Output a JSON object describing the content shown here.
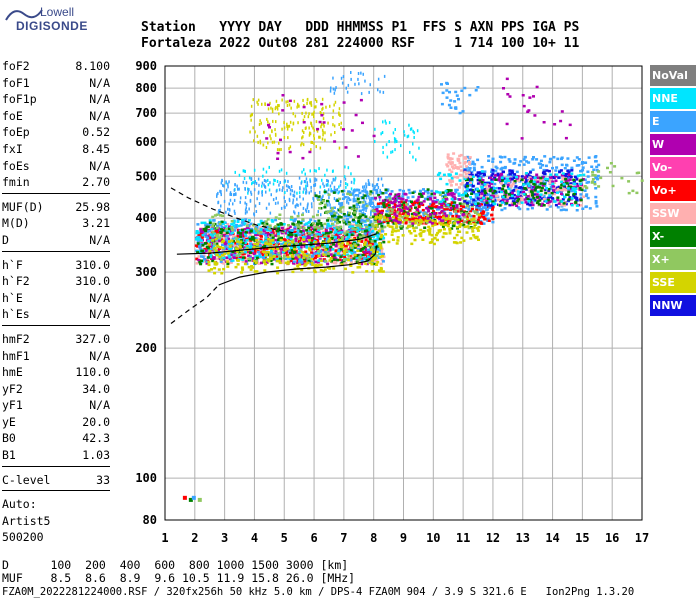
{
  "logo": {
    "line1": "Lowell",
    "line2": "DIGISONDE"
  },
  "header": {
    "line1": "Station   YYYY DAY   DDD HHMMSS P1  FFS S AXN PPS IGA PS",
    "line2": "Fortaleza 2022 Out08 281 224000 RSF     1 714 100 10+ 11"
  },
  "params": {
    "group1": [
      {
        "k": "foF2",
        "v": "8.100"
      },
      {
        "k": "foF1",
        "v": "N/A"
      },
      {
        "k": "foF1p",
        "v": "N/A"
      },
      {
        "k": "foE",
        "v": "N/A"
      },
      {
        "k": "foEp",
        "v": "0.52"
      },
      {
        "k": "fxI",
        "v": "8.45"
      },
      {
        "k": "foEs",
        "v": "N/A"
      },
      {
        "k": "fmin",
        "v": "2.70"
      }
    ],
    "group2": [
      {
        "k": "MUF(D)",
        "v": "25.98"
      },
      {
        "k": "M(D)",
        "v": "3.21"
      },
      {
        "k": "D",
        "v": "N/A"
      }
    ],
    "group3": [
      {
        "k": "h`F",
        "v": "310.0"
      },
      {
        "k": "h`F2",
        "v": "310.0"
      },
      {
        "k": "h`E",
        "v": "N/A"
      },
      {
        "k": "h`Es",
        "v": "N/A"
      }
    ],
    "group4": [
      {
        "k": "hmF2",
        "v": "327.0"
      },
      {
        "k": "hmF1",
        "v": "N/A"
      },
      {
        "k": "hmE",
        "v": "110.0"
      },
      {
        "k": "yF2",
        "v": "34.0"
      },
      {
        "k": "yF1",
        "v": "N/A"
      },
      {
        "k": "yE",
        "v": "20.0"
      },
      {
        "k": "B0",
        "v": "42.3"
      },
      {
        "k": "B1",
        "v": "1.03"
      }
    ],
    "clevel": {
      "k": "C-level",
      "v": "33"
    },
    "auto": [
      "Auto:",
      "Artist5",
      "500200"
    ]
  },
  "legend": [
    {
      "label": "NoVal",
      "color": "#7f7f7f"
    },
    {
      "label": "NNE",
      "color": "#00e5ff"
    },
    {
      "label": "E",
      "color": "#3ba4ff"
    },
    {
      "label": "W",
      "color": "#b000b0"
    },
    {
      "label": "Vo-",
      "color": "#ff40b0"
    },
    {
      "label": "Vo+",
      "color": "#ff0000"
    },
    {
      "label": "SSW",
      "color": "#ffb0b0"
    },
    {
      "label": "X-",
      "color": "#008000"
    },
    {
      "label": "X+",
      "color": "#90c860"
    },
    {
      "label": "SSE",
      "color": "#d4d400"
    },
    {
      "label": "NNW",
      "color": "#1010e0"
    }
  ],
  "bottom": {
    "row_d": "D      100  200  400  600  800 1000 1500 3000 [km]",
    "row_muf": "MUF    8.5  8.6  8.9  9.6 10.5 11.9 15.8 26.0 [MHz]",
    "footer": "FZA0M_2022281224000.RSF / 320fx256h 50 kHz 5.0 km / DPS-4 FZA0M 904 / 3.9 S 321.6 E   Ion2Png 1.3.20"
  },
  "chart_data": {
    "type": "scatter",
    "xlim": [
      1,
      17
    ],
    "ylim": [
      80,
      900
    ],
    "y_scale": "log",
    "x_ticks": [
      "1",
      "2",
      "3",
      "4",
      "5",
      "6",
      "7",
      "8",
      "9",
      "10",
      "11",
      "12",
      "13",
      "14",
      "15",
      "16",
      "17"
    ],
    "y_ticks": [
      80,
      100,
      200,
      300,
      400,
      500,
      600,
      700,
      800,
      900
    ],
    "grid": true,
    "curves": {
      "upper_dashed": [
        [
          1.2,
          470
        ],
        [
          1.8,
          445
        ],
        [
          2.6,
          420
        ],
        [
          3.4,
          400
        ],
        [
          4.1,
          385
        ],
        [
          4.8,
          375
        ],
        [
          5.3,
          370
        ]
      ],
      "lower_dashed": [
        [
          1.2,
          228
        ],
        [
          1.8,
          245
        ],
        [
          2.4,
          262
        ],
        [
          2.8,
          280
        ]
      ],
      "profile": [
        [
          2.8,
          280
        ],
        [
          3.5,
          292
        ],
        [
          4.4,
          300
        ],
        [
          5.4,
          305
        ],
        [
          6.4,
          308
        ],
        [
          7.2,
          312
        ],
        [
          7.8,
          318
        ],
        [
          8.05,
          330
        ],
        [
          8.1,
          345
        ]
      ],
      "trace": [
        [
          1.4,
          330
        ],
        [
          2.5,
          332
        ],
        [
          3.5,
          337
        ],
        [
          4.5,
          342
        ],
        [
          5.5,
          346
        ],
        [
          6.5,
          350
        ],
        [
          7.5,
          357
        ],
        [
          8.1,
          368
        ]
      ]
    },
    "clusters": [
      {
        "c": 9,
        "x0": 3.8,
        "x1": 6.9,
        "y0": 580,
        "y1": 760,
        "n": 180,
        "rows": true
      },
      {
        "c": 2,
        "x0": 6.5,
        "x1": 8.5,
        "y0": 780,
        "y1": 880,
        "n": 30,
        "rows": true
      },
      {
        "c": 1,
        "x0": 3.0,
        "x1": 7.5,
        "y0": 460,
        "y1": 530,
        "n": 80,
        "rows": true
      },
      {
        "c": 2,
        "x0": 2.7,
        "x1": 8.3,
        "y0": 410,
        "y1": 500,
        "n": 300,
        "rows": true
      },
      {
        "c": 6,
        "x0": 2.0,
        "x1": 8.3,
        "y0": 315,
        "y1": 390,
        "n": 450
      },
      {
        "c": 5,
        "x0": 2.0,
        "x1": 8.0,
        "y0": 320,
        "y1": 380,
        "n": 350
      },
      {
        "c": 3,
        "x0": 2.0,
        "x1": 8.0,
        "y0": 315,
        "y1": 385,
        "n": 300
      },
      {
        "c": 2,
        "x0": 2.0,
        "x1": 8.3,
        "y0": 315,
        "y1": 400,
        "n": 300
      },
      {
        "c": 1,
        "x0": 2.0,
        "x1": 8.3,
        "y0": 320,
        "y1": 400,
        "n": 250
      },
      {
        "c": 7,
        "x0": 2.0,
        "x1": 8.3,
        "y0": 315,
        "y1": 395,
        "n": 200
      },
      {
        "c": 8,
        "x0": 2.5,
        "x1": 8.3,
        "y0": 320,
        "y1": 410,
        "n": 150
      },
      {
        "c": 9,
        "x0": 2.4,
        "x1": 8.3,
        "y0": 300,
        "y1": 360,
        "n": 220
      },
      {
        "c": 2,
        "x0": 6.5,
        "x1": 12.0,
        "y0": 390,
        "y1": 470,
        "n": 300
      },
      {
        "c": 5,
        "x0": 8.0,
        "x1": 12.0,
        "y0": 390,
        "y1": 440,
        "n": 220
      },
      {
        "c": 7,
        "x0": 6.0,
        "x1": 11.5,
        "y0": 380,
        "y1": 470,
        "n": 150
      },
      {
        "c": 8,
        "x0": 6.0,
        "x1": 11.5,
        "y0": 380,
        "y1": 460,
        "n": 120
      },
      {
        "c": 9,
        "x0": 8.0,
        "x1": 11.5,
        "y0": 350,
        "y1": 410,
        "n": 160
      },
      {
        "c": 3,
        "x0": 8.0,
        "x1": 11.0,
        "y0": 390,
        "y1": 460,
        "n": 100
      },
      {
        "c": 2,
        "x0": 11.0,
        "x1": 15.5,
        "y0": 420,
        "y1": 560,
        "n": 300
      },
      {
        "c": 10,
        "x0": 11.0,
        "x1": 14.8,
        "y0": 430,
        "y1": 520,
        "n": 250
      },
      {
        "c": 6,
        "x0": 11.5,
        "x1": 15.0,
        "y0": 430,
        "y1": 500,
        "n": 120
      },
      {
        "c": 3,
        "x0": 11.5,
        "x1": 15.0,
        "y0": 430,
        "y1": 510,
        "n": 100
      },
      {
        "c": 7,
        "x0": 11.0,
        "x1": 15.0,
        "y0": 430,
        "y1": 500,
        "n": 100
      },
      {
        "c": 1,
        "x0": 10.0,
        "x1": 15.0,
        "y0": 430,
        "y1": 520,
        "n": 100
      },
      {
        "c": 6,
        "x0": 10.4,
        "x1": 11.2,
        "y0": 470,
        "y1": 570,
        "n": 60
      },
      {
        "c": 1,
        "x0": 8.0,
        "x1": 9.5,
        "y0": 540,
        "y1": 680,
        "n": 40,
        "rows": true
      },
      {
        "c": 2,
        "x0": 10.2,
        "x1": 11.5,
        "y0": 700,
        "y1": 830,
        "n": 25
      },
      {
        "c": 3,
        "x0": 12.2,
        "x1": 14.6,
        "y0": 580,
        "y1": 850,
        "n": 20
      },
      {
        "c": 8,
        "x0": 15.0,
        "x1": 17.0,
        "y0": 460,
        "y1": 540,
        "n": 25
      },
      {
        "c": 3,
        "x0": 4.0,
        "x1": 8.0,
        "y0": 550,
        "y1": 800,
        "n": 30
      }
    ],
    "low_points": [
      [
        1.6,
        91,
        5
      ],
      [
        1.8,
        90,
        7
      ],
      [
        1.9,
        91,
        2
      ],
      [
        2.1,
        90,
        8
      ]
    ]
  }
}
